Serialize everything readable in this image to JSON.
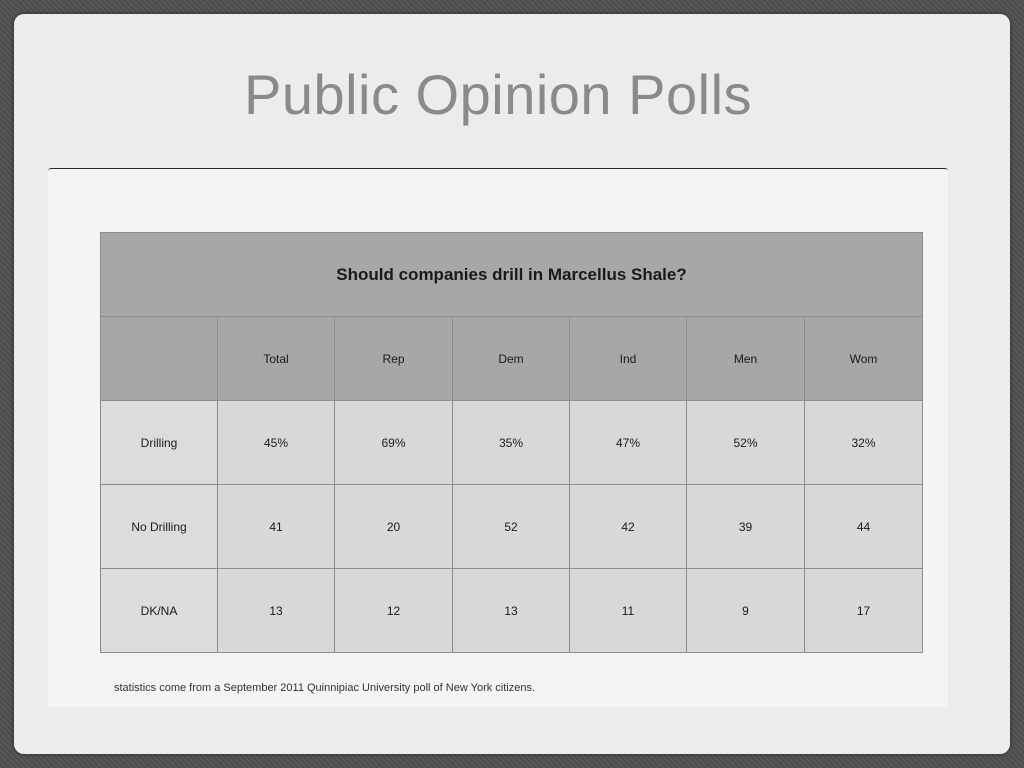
{
  "slide": {
    "title": "Public Opinion Polls",
    "footnote": "statistics come from a September 2011 Quinnipiac University poll of New York citizens."
  },
  "table": {
    "question": "Should companies drill in Marcellus Shale?",
    "columns": [
      "Total",
      "Rep",
      "Dem",
      "Ind",
      "Men",
      "Wom"
    ],
    "rows": [
      {
        "label": "Drilling",
        "values": [
          "45%",
          "69%",
          "35%",
          "47%",
          "52%",
          "32%"
        ]
      },
      {
        "label": "No Drilling",
        "values": [
          "41",
          "20",
          "52",
          "42",
          "39",
          "44"
        ]
      },
      {
        "label": "DK/NA",
        "values": [
          "13",
          "12",
          "13",
          "11",
          "9",
          "17"
        ]
      }
    ]
  }
}
